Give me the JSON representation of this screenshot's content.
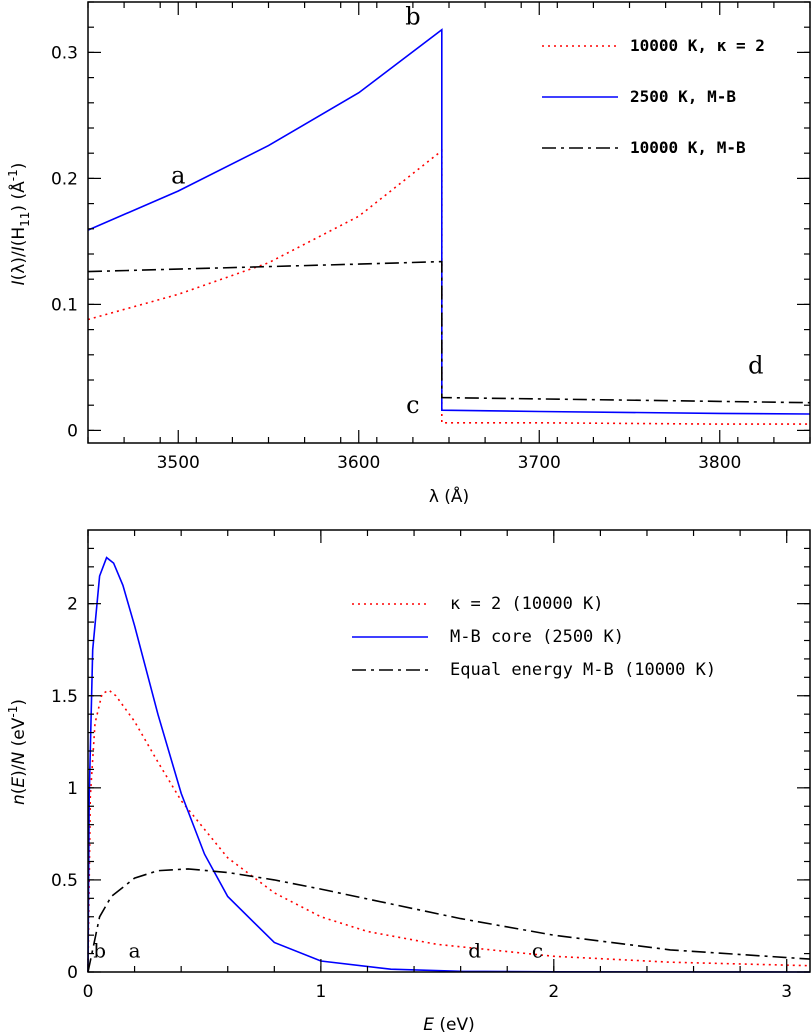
{
  "chart_data": [
    {
      "type": "line",
      "panel": "top",
      "title": "",
      "xlabel": "λ (Å)",
      "ylabel": "I(λ)/I(H11) (Å-1)",
      "ylabel_parts": {
        "a": "I",
        "b": "(λ)/",
        "c": "I",
        "d": "(H",
        "e": "11",
        "f": ")  (Å",
        "g": "-1",
        "h": ")"
      },
      "xlim": [
        3450,
        3850
      ],
      "ylim": [
        -0.01,
        0.34
      ],
      "xticks": [
        3500,
        3600,
        3700,
        3800
      ],
      "xtick_labels": [
        "3500",
        "3600",
        "3700",
        "3800"
      ],
      "yticks": [
        0,
        0.1,
        0.2,
        0.3
      ],
      "ytick_labels": [
        "0",
        "0.1",
        "0.2",
        "0.3"
      ],
      "legend": [
        {
          "label": "10000 K, κ = 2",
          "style": "dotted",
          "color": "#ff0000"
        },
        {
          "label": "2500 K, M-B",
          "style": "solid",
          "color": "#0000ff"
        },
        {
          "label": "10000 K, M-B",
          "style": "dashdot",
          "color": "#000000"
        }
      ],
      "series": [
        {
          "name": "10000 K, κ = 2",
          "style": "dotted",
          "color": "#ff0000",
          "x": [
            3450,
            3500,
            3550,
            3600,
            3646,
            3646,
            3700,
            3800,
            3850
          ],
          "y": [
            0.088,
            0.108,
            0.133,
            0.17,
            0.222,
            0.006,
            0.006,
            0.005,
            0.005
          ]
        },
        {
          "name": "2500 K, M-B",
          "style": "solid",
          "color": "#0000ff",
          "x": [
            3450,
            3500,
            3550,
            3600,
            3646,
            3646,
            3700,
            3800,
            3850
          ],
          "y": [
            0.159,
            0.19,
            0.226,
            0.268,
            0.318,
            0.016,
            0.015,
            0.0135,
            0.013
          ]
        },
        {
          "name": "10000 K, M-B",
          "style": "dashdot",
          "color": "#000000",
          "x": [
            3450,
            3500,
            3550,
            3600,
            3646,
            3646,
            3700,
            3800,
            3850
          ],
          "y": [
            0.126,
            0.128,
            0.13,
            0.132,
            0.134,
            0.026,
            0.025,
            0.023,
            0.022
          ]
        }
      ],
      "annotations": [
        {
          "text": "a",
          "x": 3500,
          "y": 0.196
        },
        {
          "text": "b",
          "x": 3630,
          "y": 0.322
        },
        {
          "text": "c",
          "x": 3630,
          "y": 0.014
        },
        {
          "text": "d",
          "x": 3820,
          "y": 0.045
        }
      ]
    },
    {
      "type": "line",
      "panel": "bottom",
      "title": "",
      "xlabel": "E (eV)",
      "xlabel_parts": {
        "a": "E",
        "b": " (eV)"
      },
      "ylabel": "n(E)/N (eV-1)",
      "ylabel_parts": {
        "a": "n",
        "b": "(",
        "c": "E",
        "d": ")/",
        "e": "N",
        "f": " (eV",
        "g": "-1",
        "h": ")"
      },
      "xlim": [
        0,
        3.1
      ],
      "ylim": [
        0,
        2.4
      ],
      "xticks": [
        0,
        1,
        2,
        3
      ],
      "xtick_labels": [
        "0",
        "1",
        "2",
        "3"
      ],
      "yticks": [
        0,
        0.5,
        1,
        1.5,
        2
      ],
      "ytick_labels": [
        "0",
        "0.5",
        "1",
        "1.5",
        "2"
      ],
      "legend": [
        {
          "label": "κ = 2 (10000 K)",
          "style": "dotted",
          "color": "#ff0000"
        },
        {
          "label": "M-B core (2500 K)",
          "style": "solid",
          "color": "#0000ff"
        },
        {
          "label": "Equal energy M-B (10000 K)",
          "style": "dashdot",
          "color": "#000000"
        }
      ],
      "series": [
        {
          "name": "κ = 2 (10000 K)",
          "style": "dotted",
          "color": "#ff0000",
          "x": [
            0.0,
            0.01,
            0.03,
            0.06,
            0.09,
            0.12,
            0.2,
            0.3,
            0.4,
            0.6,
            0.8,
            1.0,
            1.2,
            1.5,
            2.0,
            2.5,
            3.1
          ],
          "y": [
            0.0,
            0.95,
            1.35,
            1.51,
            1.53,
            1.5,
            1.36,
            1.14,
            0.93,
            0.62,
            0.43,
            0.3,
            0.22,
            0.15,
            0.085,
            0.053,
            0.034
          ]
        },
        {
          "name": "M-B core (2500 K)",
          "style": "solid",
          "color": "#0000ff",
          "x": [
            0.0,
            0.005,
            0.02,
            0.05,
            0.08,
            0.11,
            0.15,
            0.2,
            0.3,
            0.4,
            0.5,
            0.6,
            0.8,
            1.0,
            1.3,
            1.6,
            2.0,
            3.1
          ],
          "y": [
            0.0,
            0.95,
            1.75,
            2.15,
            2.25,
            2.22,
            2.1,
            1.88,
            1.4,
            0.97,
            0.64,
            0.41,
            0.16,
            0.06,
            0.015,
            0.004,
            0.001,
            0.0
          ]
        },
        {
          "name": "Equal energy M-B (10000 K)",
          "style": "dashdot",
          "color": "#000000",
          "x": [
            0.0,
            0.05,
            0.1,
            0.2,
            0.3,
            0.43,
            0.6,
            0.8,
            1.0,
            1.3,
            1.6,
            2.0,
            2.5,
            3.1
          ],
          "y": [
            0.0,
            0.3,
            0.41,
            0.51,
            0.55,
            0.56,
            0.54,
            0.5,
            0.45,
            0.37,
            0.29,
            0.2,
            0.12,
            0.07
          ]
        }
      ],
      "annotations": [
        {
          "text": "b",
          "x": 0.05,
          "y": 0.08
        },
        {
          "text": "a",
          "x": 0.2,
          "y": 0.08
        },
        {
          "text": "d",
          "x": 1.66,
          "y": 0.08
        },
        {
          "text": "c",
          "x": 1.93,
          "y": 0.08
        }
      ]
    }
  ]
}
